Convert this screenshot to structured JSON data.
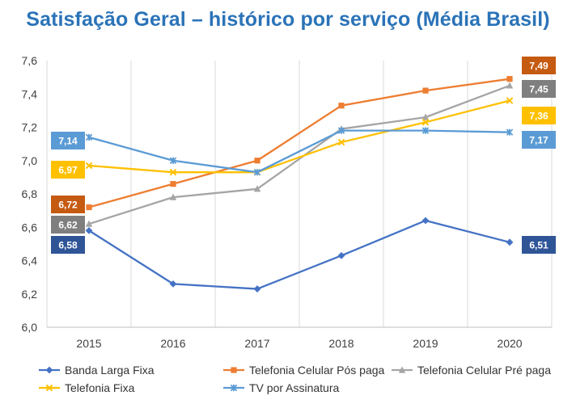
{
  "chart_data": {
    "type": "line",
    "title": "Satisfação Geral – histórico por serviço (Média Brasil)",
    "xlabel": "",
    "ylabel": "",
    "categories": [
      "2015",
      "2016",
      "2017",
      "2018",
      "2019",
      "2020"
    ],
    "ylim": [
      6.0,
      7.6
    ],
    "yticks": [
      "6,0",
      "6,2",
      "6,4",
      "6,6",
      "6,8",
      "7,0",
      "7,2",
      "7,4",
      "7,6"
    ],
    "yticks_values": [
      6.0,
      6.2,
      6.4,
      6.6,
      6.8,
      7.0,
      7.2,
      7.4,
      7.6
    ],
    "grid": "vertical",
    "legend_position": "bottom",
    "series": [
      {
        "name": "Banda Larga Fixa",
        "color": "#4472c4",
        "marker": "diamond",
        "values": [
          6.58,
          6.26,
          6.23,
          6.43,
          6.64,
          6.51
        ],
        "start_label": "6,58",
        "end_label": "6,51",
        "label_color": "#2f5597"
      },
      {
        "name": "Telefonia Celular Pós paga",
        "color": "#ed7d31",
        "marker": "square",
        "values": [
          6.72,
          6.86,
          7.0,
          7.33,
          7.42,
          7.49
        ],
        "start_label": "6,72",
        "end_label": "7,49",
        "label_color": "#c55a11"
      },
      {
        "name": "Telefonia Celular Pré paga",
        "color": "#a5a5a5",
        "marker": "triangle",
        "values": [
          6.62,
          6.78,
          6.83,
          7.19,
          7.26,
          7.45
        ],
        "start_label": "6,62",
        "end_label": "7,45",
        "label_color": "#7f7f7f"
      },
      {
        "name": "Telefonia Fixa",
        "color": "#ffc000",
        "marker": "x",
        "values": [
          6.97,
          6.93,
          6.93,
          7.11,
          7.23,
          7.36
        ],
        "start_label": "6,97",
        "end_label": "7,36",
        "label_color": "#ffc000"
      },
      {
        "name": "TV por Assinatura",
        "color": "#5b9bd5",
        "marker": "star",
        "values": [
          7.14,
          7.0,
          6.93,
          7.18,
          7.18,
          7.17
        ],
        "start_label": "7,14",
        "end_label": "7,17",
        "label_color": "#5b9bd5"
      }
    ]
  }
}
